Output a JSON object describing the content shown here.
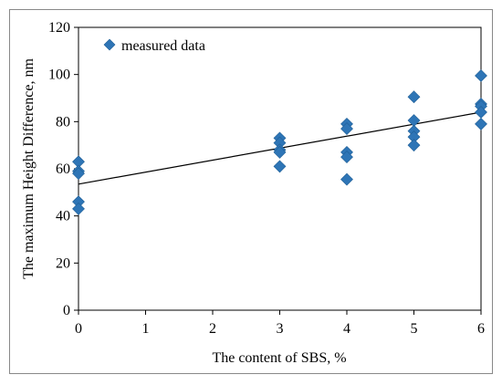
{
  "chart_data": {
    "type": "scatter",
    "title": "",
    "xlabel": "The content of SBS, %",
    "ylabel": "The maximum Height Difference,   nm",
    "xlim": [
      0,
      6
    ],
    "ylim": [
      0,
      120
    ],
    "xticks": [
      "0",
      "1",
      "2",
      "3",
      "4",
      "5",
      "6"
    ],
    "yticks": [
      "0",
      "20",
      "40",
      "60",
      "80",
      "100",
      "120"
    ],
    "grid": false,
    "legend_position": "top-left",
    "series": [
      {
        "name": "measured data",
        "color": "#2E75B6",
        "marker": "diamond",
        "points": [
          [
            0,
            63
          ],
          [
            0,
            59
          ],
          [
            0,
            58
          ],
          [
            0,
            46
          ],
          [
            0,
            43
          ],
          [
            3,
            73
          ],
          [
            3,
            71
          ],
          [
            3,
            68
          ],
          [
            3,
            67
          ],
          [
            3,
            61
          ],
          [
            4,
            79
          ],
          [
            4,
            77
          ],
          [
            4,
            67
          ],
          [
            4,
            65
          ],
          [
            4,
            55.5
          ],
          [
            5,
            90.5
          ],
          [
            5,
            80.5
          ],
          [
            5,
            76
          ],
          [
            5,
            73.5
          ],
          [
            5,
            70
          ],
          [
            6,
            99.5
          ],
          [
            6,
            87.5
          ],
          [
            6,
            86.5
          ],
          [
            6,
            84
          ],
          [
            6,
            79
          ]
        ]
      }
    ],
    "trendline": {
      "type": "linear",
      "color": "#000000",
      "start": [
        0,
        53.5
      ],
      "end": [
        6,
        84
      ]
    }
  }
}
